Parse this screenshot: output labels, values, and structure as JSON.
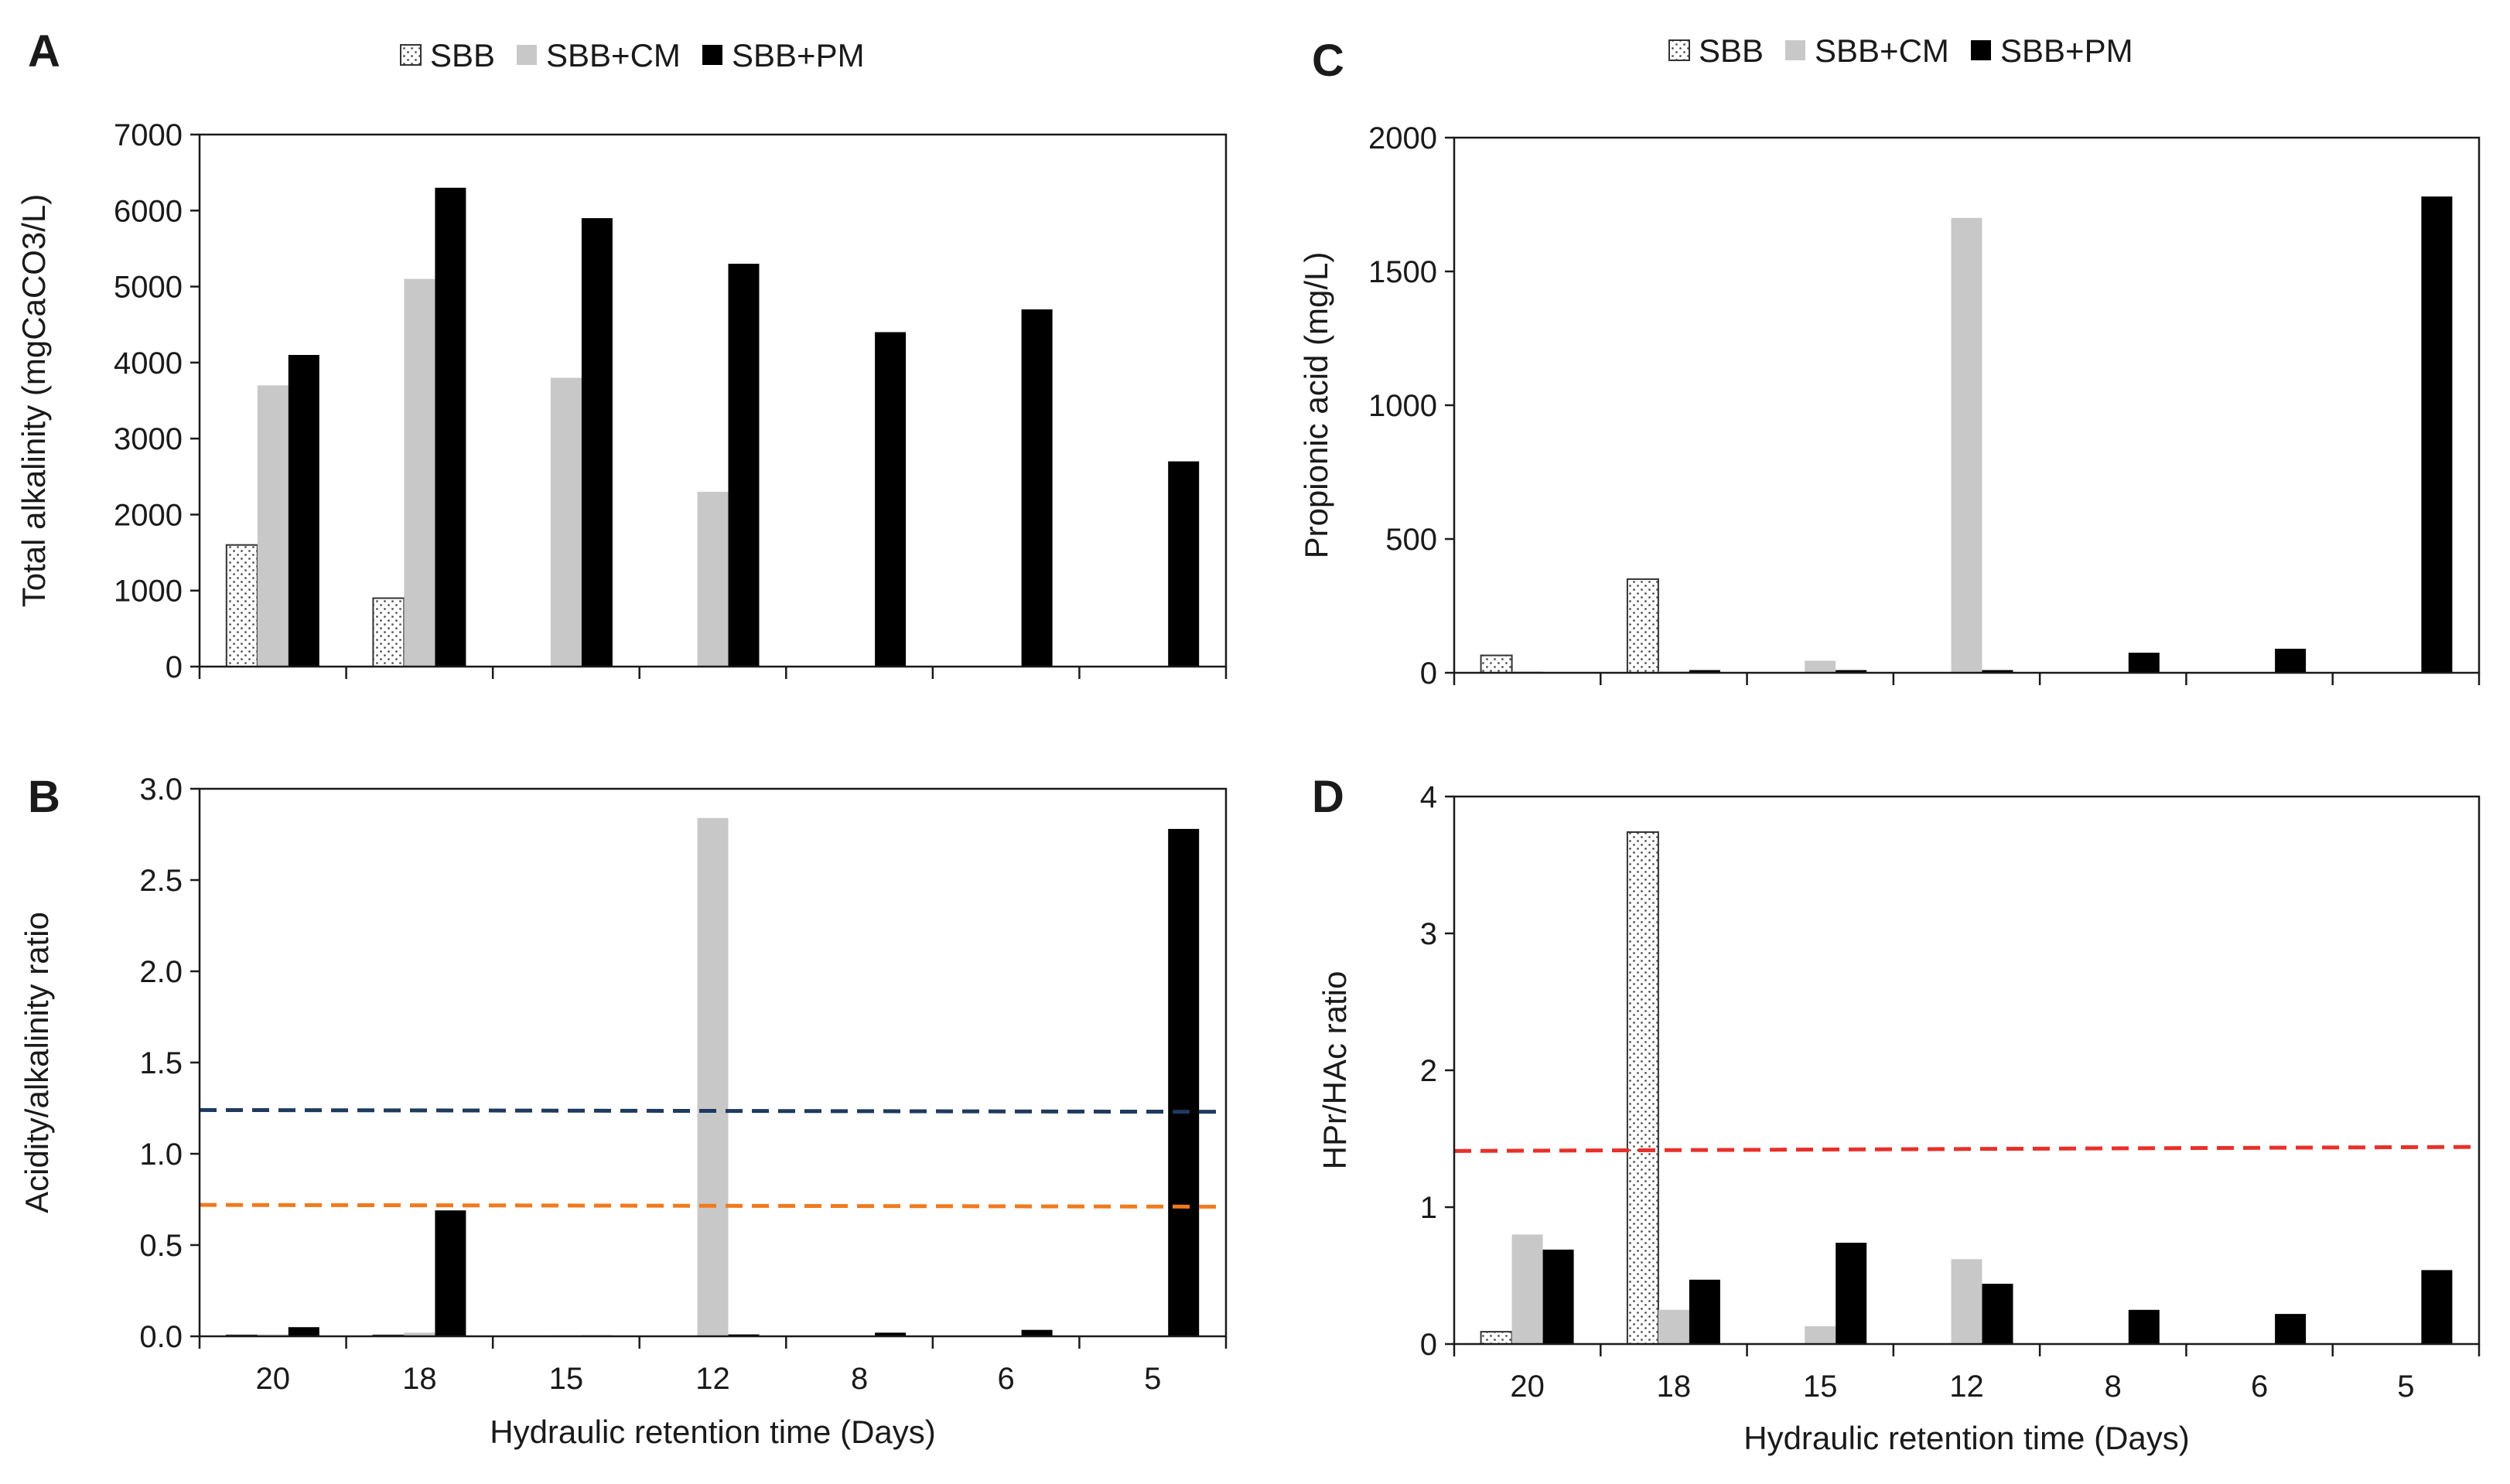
{
  "figure": {
    "legend": [
      "SBB",
      "SBB+CM",
      "SBB+PM"
    ],
    "colors": {
      "SBB": "#ffffff",
      "SBB+CM": "#c8c8c8",
      "SBB+PM": "#000000",
      "dots": "#555555",
      "axis": "#1a1a1a",
      "blue_line": "#1f3a5f",
      "orange_line": "#f07a1e",
      "red_line": "#e8302a"
    }
  },
  "chart_data": [
    {
      "panel": "A",
      "type": "bar",
      "title": "",
      "xlabel": "",
      "ylabel": "Total alkalinity (mgCaCO3/L)",
      "categories": [
        "20",
        "18",
        "15",
        "12",
        "8",
        "6",
        "5"
      ],
      "ylim": [
        0,
        7000
      ],
      "yticks": [
        0,
        1000,
        2000,
        3000,
        4000,
        5000,
        6000,
        7000
      ],
      "ytick_labels": [
        "0",
        "1000",
        "2000",
        "3000",
        "4000",
        "5000",
        "6000",
        "7000"
      ],
      "grid": false,
      "legend_position": "top",
      "series": [
        {
          "name": "SBB",
          "values": [
            1600,
            900,
            0,
            0,
            0,
            0,
            0
          ]
        },
        {
          "name": "SBB+CM",
          "values": [
            3700,
            5100,
            3800,
            2300,
            0,
            0,
            0
          ]
        },
        {
          "name": "SBB+PM",
          "values": [
            4100,
            6300,
            5900,
            5300,
            4400,
            4700,
            2700
          ]
        }
      ],
      "reference_lines": []
    },
    {
      "panel": "B",
      "type": "bar",
      "title": "",
      "xlabel": "Hydraulic retention time (Days)",
      "ylabel": "Acidity/alkalinity ratio",
      "categories": [
        "20",
        "18",
        "15",
        "12",
        "8",
        "6",
        "5"
      ],
      "ylim": [
        0,
        3.0
      ],
      "yticks": [
        0,
        0.5,
        1.0,
        1.5,
        2.0,
        2.5,
        3.0
      ],
      "ytick_labels": [
        "0.0",
        "0.5",
        "1.0",
        "1.5",
        "2.0",
        "2.5",
        "3.0"
      ],
      "grid": false,
      "series": [
        {
          "name": "SBB",
          "values": [
            0.005,
            0.005,
            0,
            0,
            0,
            0,
            0
          ]
        },
        {
          "name": "SBB+CM",
          "values": [
            0.01,
            0.02,
            0.005,
            2.84,
            0,
            0,
            0
          ]
        },
        {
          "name": "SBB+PM",
          "values": [
            0.05,
            0.69,
            0.005,
            0.01,
            0.02,
            0.035,
            2.78
          ]
        }
      ],
      "reference_lines": [
        {
          "color": "blue_line",
          "y_start": 1.24,
          "y_end": 1.23
        },
        {
          "color": "orange_line",
          "y_start": 0.72,
          "y_end": 0.71
        }
      ]
    },
    {
      "panel": "C",
      "type": "bar",
      "title": "",
      "xlabel": "",
      "ylabel": "Propionic acid (mg/L)",
      "categories": [
        "20",
        "18",
        "15",
        "12",
        "8",
        "6",
        "5"
      ],
      "ylim": [
        0,
        2000
      ],
      "yticks": [
        0,
        500,
        1000,
        1500,
        2000
      ],
      "ytick_labels": [
        "0",
        "500",
        "1000",
        "1500",
        "2000"
      ],
      "grid": false,
      "legend_position": "top",
      "series": [
        {
          "name": "SBB",
          "values": [
            65,
            350,
            0,
            0,
            0,
            0,
            0
          ]
        },
        {
          "name": "SBB+CM",
          "values": [
            5,
            5,
            45,
            1700,
            0,
            0,
            0
          ]
        },
        {
          "name": "SBB+PM",
          "values": [
            3,
            10,
            10,
            10,
            75,
            90,
            1780
          ]
        }
      ],
      "reference_lines": []
    },
    {
      "panel": "D",
      "type": "bar",
      "title": "",
      "xlabel": "Hydraulic retention time (Days)",
      "ylabel": "HPr/HAc ratio",
      "categories": [
        "20",
        "18",
        "15",
        "12",
        "8",
        "6",
        "5"
      ],
      "ylim": [
        0,
        4
      ],
      "yticks": [
        0,
        1,
        2,
        3,
        4
      ],
      "ytick_labels": [
        "0",
        "1",
        "2",
        "3",
        "4"
      ],
      "grid": false,
      "series": [
        {
          "name": "SBB",
          "values": [
            0.09,
            3.74,
            0,
            0,
            0,
            0,
            0
          ]
        },
        {
          "name": "SBB+CM",
          "values": [
            0.8,
            0.25,
            0.13,
            0.62,
            0,
            0,
            0
          ]
        },
        {
          "name": "SBB+PM",
          "values": [
            0.69,
            0.47,
            0.74,
            0.44,
            0.25,
            0.22,
            0.54
          ]
        }
      ],
      "reference_lines": [
        {
          "color": "red_line",
          "y_start": 1.41,
          "y_end": 1.44
        }
      ]
    }
  ]
}
